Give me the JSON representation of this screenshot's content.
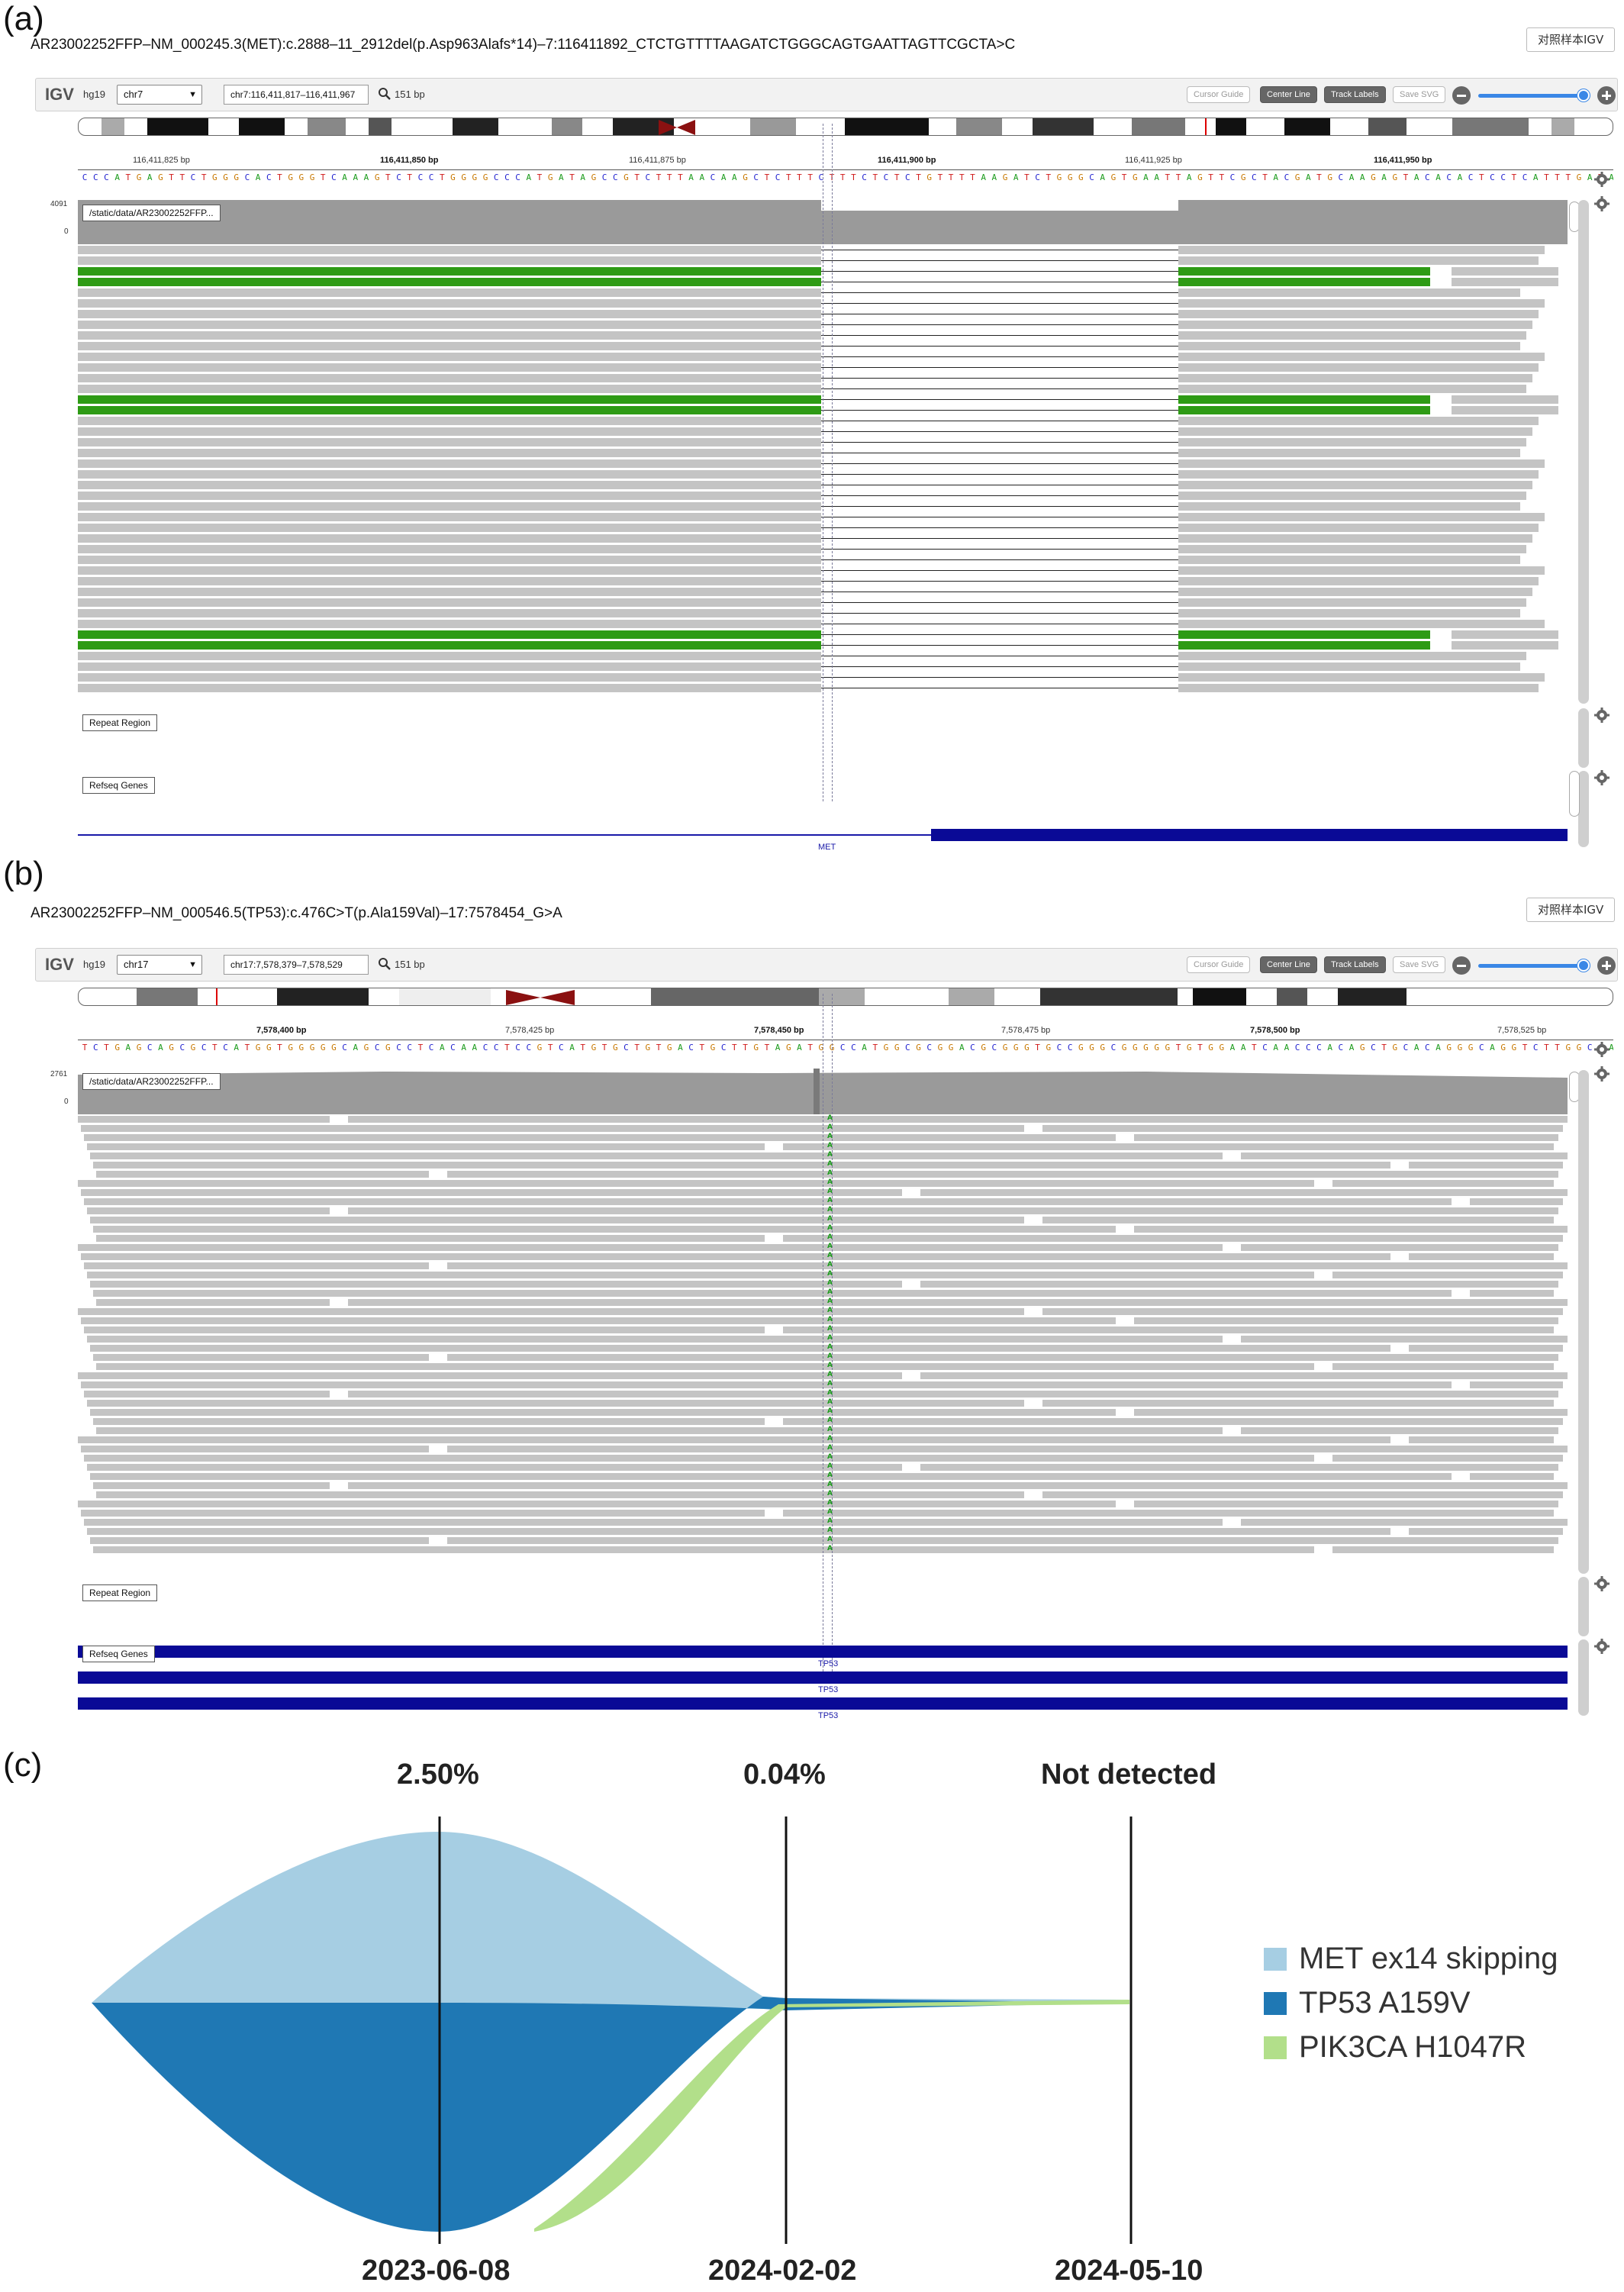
{
  "panel_a": {
    "letter": "(a)",
    "header": "AR23002252FFP–NM_000245.3(MET):c.2888–11_2912del(p.Asp963Alafs*14)–7:116411892_CTCTGTTTTAAGATCTGGGCAGTGAATTAGTTCGCTA>C",
    "compare_button": "对照样本IGV",
    "toolbar": {
      "logo": "IGV",
      "genome": "hg19",
      "chromosome": "chr7",
      "locus": "chr7:116,411,817–116,411,967",
      "window": "151 bp",
      "cursor_guide": "Cursor Guide",
      "center_line": "Center Line",
      "track_labels": "Track Labels",
      "save_svg": "Save SVG"
    },
    "ruler": [
      "116,411,825 bp",
      "116,411,850 bp",
      "116,411,875 bp",
      "116,411,900 bp",
      "116,411,925 bp",
      "116,411,950 bp"
    ],
    "sequence": "CCCATGAGTTCTGGGCACTGGGTCAAAGTCTCCTGGGGCCCATGATAGCCGTCTTTAACAAGCTCTTTCTTTCTCTCTGTTTTAAGATCTGGGCAGTGAATTAGTTCGCTACGATGCAAGAGTACACACTCCTCATTTGATAGGCTTGTA",
    "coverage_max": "4091",
    "coverage_min": "0",
    "alignment_track": "/static/data/AR23002252FFP...",
    "repeat_track": "Repeat Region",
    "refseq_track": "Refseq Genes",
    "gene": "MET"
  },
  "panel_b": {
    "letter": "(b)",
    "header": "AR23002252FFP–NM_000546.5(TP53):c.476C>T(p.Ala159Val)–17:7578454_G>A",
    "compare_button": "对照样本IGV",
    "toolbar": {
      "logo": "IGV",
      "genome": "hg19",
      "chromosome": "chr17",
      "locus": "chr17:7,578,379–7,578,529",
      "window": "151 bp",
      "cursor_guide": "Cursor Guide",
      "center_line": "Center Line",
      "track_labels": "Track Labels",
      "save_svg": "Save SVG"
    },
    "ruler": [
      "7,578,400 bp",
      "7,578,425 bp",
      "7,578,450 bp",
      "7,578,475 bp",
      "7,578,500 bp",
      "7,578,525 bp"
    ],
    "sequence": "TCTGAGCAGCGCTCATGGTGGGGGCAGCGCCTCACAACCTCCGTCATGTGCTGTGACTGCTTGTAGATGGCCATGGCGCGGACGCGGGTGCCGGGCGGGGGTGTGGAATCAACCCACAGCTGCACAGGGCAGGTCTTGGCCAGTTGGCAAA",
    "coverage_max": "2761",
    "coverage_min": "0",
    "alignment_track": "/static/data/AR23002252FFP...",
    "repeat_track": "Repeat Region",
    "refseq_track": "Refseq Genes",
    "gene": "TP53"
  },
  "panel_c": {
    "letter": "(c)",
    "top_labels": [
      "2.50%",
      "0.04%",
      "Not detected"
    ],
    "dates": [
      "2023-06-08",
      "2024-02-02",
      "2024-05-10"
    ],
    "legend": [
      {
        "label": "MET ex14 skipping",
        "color": "#a6cee3"
      },
      {
        "label": "TP53 A159V",
        "color": "#1f78b4"
      },
      {
        "label": "PIK3CA H1047R",
        "color": "#b2df8a"
      }
    ]
  },
  "colors": {
    "read_gray": "#c4c4c4",
    "coverage_gray": "#9a9a9a",
    "soft_clip_green": "#2e9b15",
    "gene_blue": "#0a0a96",
    "igv_toolbar": "#f2f2f2"
  }
}
